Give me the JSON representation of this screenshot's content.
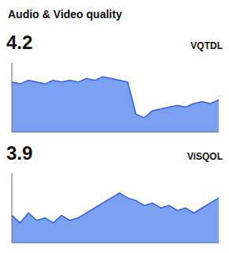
{
  "title": "Audio & Video quality",
  "chart_data": [
    {
      "type": "area",
      "title": "VQTDL",
      "annotations": [
        "4.2"
      ],
      "values": [
        0.6,
        0.59,
        0.61,
        0.6,
        0.59,
        0.61,
        0.6,
        0.61,
        0.6,
        0.62,
        0.61,
        0.63,
        0.62,
        0.61,
        0.6,
        0.42,
        0.4,
        0.44,
        0.45,
        0.46,
        0.47,
        0.46,
        0.48,
        0.49,
        0.48,
        0.5
      ],
      "ylim": [
        0.32,
        0.71
      ],
      "color": "#2563eb",
      "tick_labels": false,
      "grid": false
    },
    {
      "type": "area",
      "title": "ViSQOL",
      "annotations": [
        "3.9"
      ],
      "values": [
        0.5,
        0.47,
        0.51,
        0.48,
        0.49,
        0.47,
        0.5,
        0.48,
        0.49,
        0.51,
        0.53,
        0.55,
        0.57,
        0.59,
        0.57,
        0.56,
        0.54,
        0.55,
        0.53,
        0.54,
        0.52,
        0.53,
        0.51,
        0.53,
        0.55,
        0.57
      ],
      "ylim": [
        0.39,
        0.67
      ],
      "color": "#2563eb",
      "tick_labels": false,
      "grid": false
    }
  ]
}
